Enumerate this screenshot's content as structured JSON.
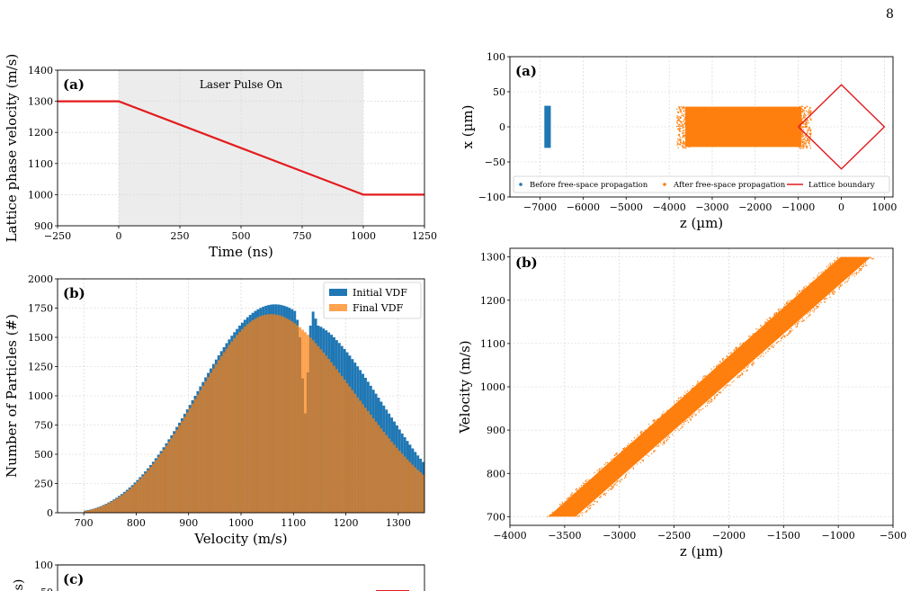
{
  "page_number": "8",
  "chart_data": [
    {
      "id": "left_a",
      "type": "line",
      "panel_label": "(a)",
      "annotation": "Laser Pulse On",
      "shaded_region": [
        0,
        1000
      ],
      "xlabel": "Time (ns)",
      "ylabel": "Lattice phase velocity (m/s)",
      "xlim": [
        -250,
        1250
      ],
      "ylim": [
        900,
        1400
      ],
      "xticks": [
        -250,
        0,
        250,
        500,
        750,
        1000,
        1250
      ],
      "yticks": [
        900,
        1000,
        1100,
        1200,
        1300,
        1400
      ],
      "grid": true,
      "line_color": "#e41a1c",
      "x": [
        -250,
        0,
        1000,
        1250
      ],
      "y": [
        1300,
        1300,
        1000,
        1000
      ]
    },
    {
      "id": "left_b",
      "type": "bar",
      "panel_label": "(b)",
      "xlabel": "Velocity (m/s)",
      "ylabel": "Number of Particles (#)",
      "xlim": [
        650,
        1350
      ],
      "ylim": [
        0,
        2000
      ],
      "xticks": [
        700,
        800,
        900,
        1000,
        1100,
        1200,
        1300
      ],
      "yticks": [
        0,
        250,
        500,
        750,
        1000,
        1250,
        1500,
        1750,
        2000
      ],
      "grid": true,
      "legend_position": "top-right",
      "bin_width": 5,
      "series": [
        {
          "name": "Initial VDF",
          "color": "#1f77b4",
          "bin_start": 700,
          "values": [
            18,
            22,
            27,
            33,
            40,
            48,
            56,
            66,
            76,
            88,
            100,
            114,
            128,
            144,
            160,
            178,
            196,
            216,
            236,
            258,
            280,
            304,
            328,
            354,
            380,
            408,
            436,
            466,
            496,
            528,
            560,
            594,
            628,
            662,
            698,
            734,
            770,
            808,
            846,
            884,
            922,
            962,
            1000,
            1040,
            1080,
            1118,
            1158,
            1196,
            1234,
            1272,
            1310,
            1346,
            1382,
            1416,
            1450,
            1482,
            1514,
            1544,
            1572,
            1600,
            1625,
            1650,
            1672,
            1692,
            1710,
            1726,
            1740,
            1752,
            1762,
            1770,
            1776,
            1780,
            1782,
            1782,
            1780,
            1776,
            1770,
            1762,
            1752,
            1740,
            1726,
            1650,
            1500,
            1150,
            850,
            1200,
            1600,
            1720,
            1660,
            1600,
            1590,
            1575,
            1560,
            1542,
            1522,
            1500,
            1476,
            1452,
            1426,
            1400,
            1372,
            1344,
            1314,
            1284,
            1252,
            1220,
            1188,
            1154,
            1120,
            1086,
            1052,
            1018,
            984,
            950,
            916,
            882,
            848,
            814,
            780,
            746,
            712,
            678,
            646,
            614,
            582,
            550,
            520,
            490,
            462,
            434,
            406,
            380,
            354,
            330,
            306,
            284,
            262,
            242,
            222,
            204,
            186,
            170,
            154,
            140,
            126,
            112,
            100,
            88,
            78,
            68,
            58,
            50,
            42,
            35,
            29,
            24,
            19,
            15,
            12,
            9
          ]
        },
        {
          "name": "Final VDF",
          "color": "#ff7f0e",
          "bin_start": 700,
          "values": [
            15,
            19,
            24,
            30,
            37,
            44,
            52,
            61,
            71,
            82,
            94,
            107,
            120,
            135,
            150,
            167,
            185,
            204,
            224,
            245,
            267,
            290,
            314,
            339,
            365,
            392,
            420,
            449,
            479,
            510,
            541,
            574,
            607,
            641,
            676,
            711,
            747,
            784,
            821,
            858,
            896,
            934,
            972,
            1010,
            1048,
            1086,
            1124,
            1161,
            1198,
            1234,
            1270,
            1305,
            1339,
            1372,
            1404,
            1435,
            1465,
            1493,
            1520,
            1546,
            1570,
            1592,
            1612,
            1630,
            1646,
            1660,
            1672,
            1682,
            1689,
            1694,
            1697,
            1698,
            1697,
            1694,
            1689,
            1682,
            1673,
            1662,
            1650,
            1636,
            1620,
            1603,
            1585,
            1565,
            1544,
            1522,
            1499,
            1475,
            1450,
            1424,
            1398,
            1371,
            1343,
            1315,
            1286,
            1257,
            1228,
            1198,
            1168,
            1138,
            1108,
            1078,
            1048,
            1018,
            988,
            958,
            928,
            898,
            868,
            838,
            808,
            779,
            750,
            721,
            692,
            664,
            636,
            609,
            582,
            556,
            530,
            505,
            480,
            456,
            433,
            410,
            388,
            367,
            346,
            326,
            307,
            288,
            270,
            253,
            236,
            220,
            205,
            190,
            176,
            163,
            150,
            138,
            126,
            115,
            105,
            95,
            86,
            77,
            69,
            61,
            54,
            47,
            41,
            35,
            30,
            25,
            21,
            17,
            14,
            11
          ]
        }
      ]
    },
    {
      "id": "left_c",
      "type": "line",
      "panel_label": "(c)",
      "ylabel_partial": "s)",
      "ylim": [
        0,
        100
      ],
      "yticks": [
        50,
        100
      ],
      "grid": true,
      "x": [],
      "y": []
    },
    {
      "id": "right_a",
      "type": "scatter",
      "panel_label": "(a)",
      "xlabel": "z (µm)",
      "ylabel": "x (µm)",
      "xlim": [
        -7700,
        1200
      ],
      "ylim": [
        -100,
        100
      ],
      "xticks": [
        -7000,
        -6000,
        -5000,
        -4000,
        -3000,
        -2000,
        -1000,
        0,
        1000
      ],
      "yticks": [
        -100,
        -50,
        0,
        50,
        100
      ],
      "grid": true,
      "legend_position": "bottom",
      "series": [
        {
          "name": "Before free-space propagation",
          "color": "#1f77b4",
          "z_range": [
            -6900,
            -6750
          ],
          "x_range": [
            -30,
            30
          ]
        },
        {
          "name": "After free-space propagation",
          "color": "#ff7f0e",
          "z_range": [
            -3750,
            -800
          ],
          "x_range": [
            -30,
            30
          ]
        },
        {
          "name": "Lattice boundary",
          "color": "#e41a1c",
          "z": [
            -1000,
            0,
            1000,
            0,
            -1000
          ],
          "x": [
            0,
            60,
            0,
            -60,
            0
          ]
        }
      ]
    },
    {
      "id": "right_b",
      "type": "scatter",
      "panel_label": "(b)",
      "xlabel": "z (µm)",
      "ylabel": "Velocity (m/s)",
      "xlim": [
        -4000,
        -500
      ],
      "ylim": [
        680,
        1320
      ],
      "xticks": [
        -4000,
        -3500,
        -3000,
        -2500,
        -2000,
        -1500,
        -1000,
        -500
      ],
      "yticks": [
        700,
        800,
        900,
        1000,
        1100,
        1200,
        1300
      ],
      "grid": true,
      "series": [
        {
          "name": "",
          "color": "#ff7f0e",
          "v_range": [
            700,
            1300
          ],
          "z_at_v": [
            [
              700,
              -3650,
              -3400
            ],
            [
              1300,
              -980,
              -700
            ]
          ]
        }
      ]
    }
  ]
}
